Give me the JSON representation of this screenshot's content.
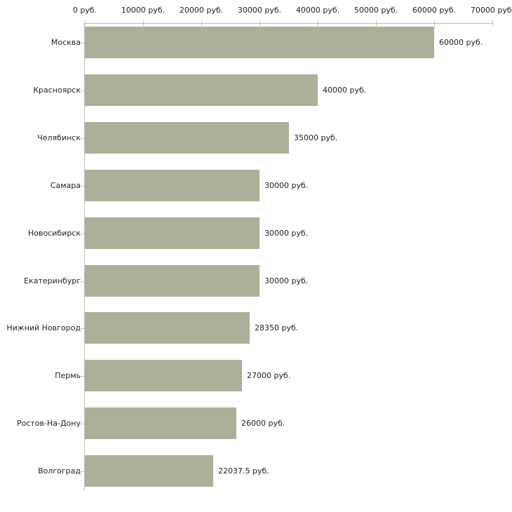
{
  "chart_data": {
    "type": "bar",
    "orientation": "horizontal",
    "title": "",
    "unit": "руб.",
    "categories": [
      "Москва",
      "Красноярск",
      "Челябинск",
      "Самара",
      "Новосибирск",
      "Екатеринбург",
      "Нижний Новгород",
      "Пермь",
      "Ростов-На-Дону",
      "Волгоград"
    ],
    "values": [
      60000,
      40000,
      35000,
      30000,
      30000,
      30000,
      28350,
      27000,
      26000,
      22037.5
    ],
    "value_labels": [
      "60000 руб.",
      "40000 руб.",
      "35000 руб.",
      "30000 руб.",
      "30000 руб.",
      "30000 руб.",
      "28350 руб.",
      "27000 руб.",
      "26000 руб.",
      "22037.5 руб."
    ],
    "x_axis": {
      "position": "top",
      "range": [
        0,
        70000
      ],
      "ticks": [
        0,
        10000,
        20000,
        30000,
        40000,
        50000,
        60000,
        70000
      ],
      "tick_labels": [
        "0 руб.",
        "10000 руб.",
        "20000 руб.",
        "30000 руб.",
        "40000 руб.",
        "50000 руб.",
        "60000 руб.",
        "70000 руб."
      ]
    },
    "grid": false,
    "legend": false,
    "colors": {
      "bar": "#abb198",
      "axis_line": "#bdbdbd",
      "tick_mark": "#cbc197",
      "text": "#222222",
      "background": "#ffffff"
    }
  }
}
